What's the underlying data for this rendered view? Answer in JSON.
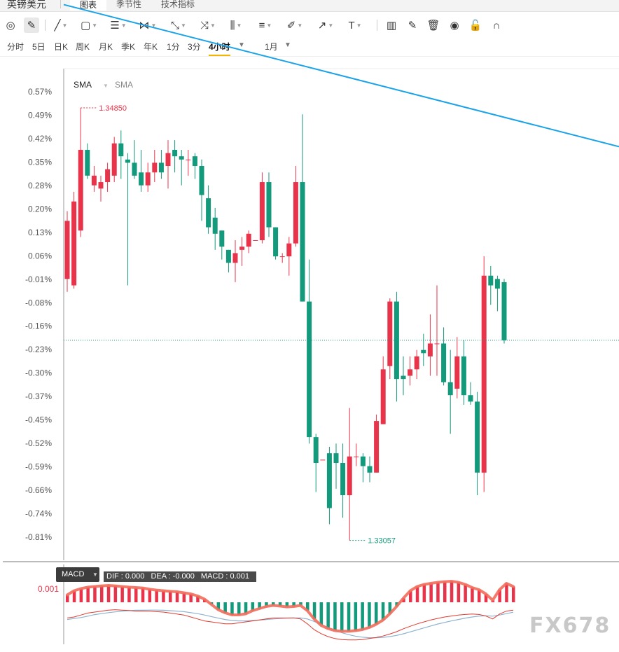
{
  "header": {
    "instrument": "英镑美元",
    "tabs": [
      {
        "label": "图表",
        "active": true
      },
      {
        "label": "季节性",
        "active": false
      },
      {
        "label": "技术指标",
        "active": false
      }
    ]
  },
  "toolbar": {
    "tools": [
      {
        "name": "magnet-icon",
        "glyph": "◎"
      },
      {
        "name": "pencil-icon",
        "glyph": "✎",
        "selected": true
      },
      {
        "name": "line-icon",
        "glyph": "╱"
      },
      {
        "name": "rectangle-icon",
        "glyph": "▢"
      },
      {
        "name": "horizontal-lines-icon",
        "glyph": "☰"
      },
      {
        "name": "pattern-icon",
        "glyph": "⋈"
      },
      {
        "name": "ray-icon",
        "glyph": "⤡"
      },
      {
        "name": "fork-icon",
        "glyph": "⤨"
      },
      {
        "name": "bars-icon",
        "glyph": "⫼"
      },
      {
        "name": "fib-icon",
        "glyph": "≡"
      },
      {
        "name": "brush-icon",
        "glyph": "✐"
      },
      {
        "name": "arrow-icon",
        "glyph": "↗"
      },
      {
        "name": "text-icon",
        "glyph": "T"
      },
      {
        "name": "bar-chart-icon",
        "glyph": "▥"
      },
      {
        "name": "edit-icon",
        "glyph": "✎"
      },
      {
        "name": "trash-icon",
        "glyph": "🗑"
      },
      {
        "name": "eye-icon",
        "glyph": "◉"
      },
      {
        "name": "unlock-icon",
        "glyph": "🔓"
      },
      {
        "name": "magnet-u-icon",
        "glyph": "∩"
      }
    ]
  },
  "periods": {
    "items": [
      "分时",
      "5日",
      "日K",
      "周K",
      "月K",
      "季K",
      "年K",
      "1分",
      "3分",
      "4小时"
    ],
    "active": "4小时",
    "range": "1月"
  },
  "chart_data": {
    "type": "candlestick",
    "timeframe": "4小时",
    "y_axis_format": "percent change",
    "yticks": [
      "0.57%",
      "0.49%",
      "0.42%",
      "0.35%",
      "0.28%",
      "0.20%",
      "0.13%",
      "0.06%",
      "-0.01%",
      "-0.08%",
      "-0.16%",
      "-0.23%",
      "-0.30%",
      "-0.37%",
      "-0.45%",
      "-0.52%",
      "-0.59%",
      "-0.66%",
      "-0.74%",
      "-0.81%"
    ],
    "indicator_labels": [
      "SMA",
      "SMA"
    ],
    "high_label": "1.34850",
    "low_label": "1.33057",
    "current_level_pct": -0.2,
    "trendline": {
      "from_pct": 0.84,
      "to_pct": 0.4,
      "color": "#1aa3e8"
    },
    "colors": {
      "up": "#e8344a",
      "down": "#13997b"
    },
    "candles": [
      {
        "o": -0.01,
        "c": 0.17,
        "h": 0.2,
        "l": -0.05
      },
      {
        "o": -0.03,
        "c": 0.23,
        "h": 0.26,
        "l": -0.04
      },
      {
        "o": 0.14,
        "c": 0.39,
        "h": 0.52,
        "l": 0.12
      },
      {
        "o": 0.39,
        "c": 0.31,
        "h": 0.41,
        "l": 0.3
      },
      {
        "o": 0.28,
        "c": 0.31,
        "h": 0.34,
        "l": 0.26
      },
      {
        "o": 0.27,
        "c": 0.29,
        "h": 0.31,
        "l": 0.23
      },
      {
        "o": 0.29,
        "c": 0.33,
        "h": 0.35,
        "l": 0.26
      },
      {
        "o": 0.31,
        "c": 0.41,
        "h": 0.43,
        "l": 0.29
      },
      {
        "o": 0.41,
        "c": 0.37,
        "h": 0.45,
        "l": 0.3
      },
      {
        "o": 0.36,
        "c": 0.35,
        "h": 0.38,
        "l": -0.03
      },
      {
        "o": 0.35,
        "c": 0.31,
        "h": 0.42,
        "l": 0.3
      },
      {
        "o": 0.32,
        "c": 0.28,
        "h": 0.39,
        "l": 0.26
      },
      {
        "o": 0.28,
        "c": 0.32,
        "h": 0.35,
        "l": 0.26
      },
      {
        "o": 0.32,
        "c": 0.35,
        "h": 0.39,
        "l": 0.29
      },
      {
        "o": 0.35,
        "c": 0.32,
        "h": 0.39,
        "l": 0.3
      },
      {
        "o": 0.34,
        "c": 0.38,
        "h": 0.42,
        "l": 0.27
      },
      {
        "o": 0.39,
        "c": 0.37,
        "h": 0.42,
        "l": 0.32
      },
      {
        "o": 0.37,
        "c": 0.36,
        "h": 0.39,
        "l": 0.28
      },
      {
        "o": 0.36,
        "c": 0.36,
        "h": 0.39,
        "l": 0.31
      },
      {
        "o": 0.37,
        "c": 0.34,
        "h": 0.38,
        "l": 0.3
      },
      {
        "o": 0.34,
        "c": 0.25,
        "h": 0.36,
        "l": 0.17
      },
      {
        "o": 0.24,
        "c": 0.15,
        "h": 0.28,
        "l": 0.13
      },
      {
        "o": 0.18,
        "c": 0.13,
        "h": 0.21,
        "l": 0.08
      },
      {
        "o": 0.14,
        "c": 0.09,
        "h": 0.14,
        "l": 0.05
      },
      {
        "o": 0.08,
        "c": 0.04,
        "h": 0.08,
        "l": 0.01
      },
      {
        "o": 0.04,
        "c": 0.07,
        "h": 0.11,
        "l": -0.02
      },
      {
        "o": 0.08,
        "c": 0.09,
        "h": 0.12,
        "l": 0.03
      },
      {
        "o": 0.09,
        "c": 0.13,
        "h": 0.14,
        "l": 0.07
      },
      {
        "o": 0.11,
        "c": 0.11,
        "h": 0.11,
        "l": 0.11
      },
      {
        "o": 0.11,
        "c": 0.29,
        "h": 0.32,
        "l": 0.1
      },
      {
        "o": 0.29,
        "c": 0.15,
        "h": 0.32,
        "l": 0.12
      },
      {
        "o": 0.15,
        "c": 0.06,
        "h": 0.15,
        "l": 0.05
      },
      {
        "o": 0.06,
        "c": 0.06,
        "h": 0.07,
        "l": 0.04
      },
      {
        "o": 0.06,
        "c": 0.1,
        "h": 0.12,
        "l": 0.0
      },
      {
        "o": 0.1,
        "c": 0.29,
        "h": 0.34,
        "l": 0.09
      },
      {
        "o": 0.29,
        "c": -0.08,
        "h": 0.5,
        "l": -0.08
      },
      {
        "o": -0.08,
        "c": -0.5,
        "h": 0.05,
        "l": -0.52
      },
      {
        "o": -0.5,
        "c": -0.58,
        "h": -0.49,
        "l": -0.67
      },
      {
        "o": -0.57,
        "c": -0.57,
        "h": -0.57,
        "l": -0.57
      },
      {
        "o": -0.55,
        "c": -0.72,
        "h": -0.53,
        "l": -0.77
      },
      {
        "o": -0.55,
        "c": -0.58,
        "h": -0.52,
        "l": -0.66
      },
      {
        "o": -0.58,
        "c": -0.68,
        "h": -0.52,
        "l": -0.75
      },
      {
        "o": -0.68,
        "c": -0.56,
        "h": -0.41,
        "l": -0.82
      },
      {
        "o": -0.56,
        "c": -0.56,
        "h": -0.52,
        "l": -0.59
      },
      {
        "o": -0.56,
        "c": -0.59,
        "h": -0.55,
        "l": -0.64
      },
      {
        "o": -0.59,
        "c": -0.61,
        "h": -0.56,
        "l": -0.64
      },
      {
        "o": -0.61,
        "c": -0.45,
        "h": -0.43,
        "l": -0.61
      },
      {
        "o": -0.46,
        "c": -0.29,
        "h": -0.25,
        "l": -0.46
      },
      {
        "o": -0.28,
        "c": -0.08,
        "h": -0.07,
        "l": -0.32
      },
      {
        "o": -0.08,
        "c": -0.32,
        "h": -0.05,
        "l": -0.39
      },
      {
        "o": -0.31,
        "c": -0.32,
        "h": -0.25,
        "l": -0.37
      },
      {
        "o": -0.31,
        "c": -0.29,
        "h": -0.25,
        "l": -0.34
      },
      {
        "o": -0.29,
        "c": -0.25,
        "h": -0.23,
        "l": -0.32
      },
      {
        "o": -0.23,
        "c": -0.24,
        "h": -0.18,
        "l": -0.28
      },
      {
        "o": -0.25,
        "c": -0.21,
        "h": -0.12,
        "l": -0.31
      },
      {
        "o": -0.21,
        "c": -0.21,
        "h": -0.03,
        "l": -0.31
      },
      {
        "o": -0.21,
        "c": -0.33,
        "h": -0.16,
        "l": -0.34
      },
      {
        "o": -0.33,
        "c": -0.37,
        "h": -0.23,
        "l": -0.49
      },
      {
        "o": -0.35,
        "c": -0.25,
        "h": -0.19,
        "l": -0.38
      },
      {
        "o": -0.25,
        "c": -0.37,
        "h": -0.2,
        "l": -0.4
      },
      {
        "o": -0.37,
        "c": -0.39,
        "h": -0.33,
        "l": -0.4
      },
      {
        "o": -0.39,
        "c": -0.61,
        "h": -0.36,
        "l": -0.68
      },
      {
        "o": -0.61,
        "c": 0.0,
        "h": 0.06,
        "l": -0.67
      },
      {
        "o": 0.0,
        "c": -0.03,
        "h": 0.03,
        "l": -0.09
      },
      {
        "o": -0.01,
        "c": -0.04,
        "h": 0.0,
        "l": -0.11
      },
      {
        "o": -0.02,
        "c": -0.2,
        "h": -0.01,
        "l": -0.21
      }
    ]
  },
  "macd": {
    "name": "MACD",
    "dif_label": "DIF : 0.000",
    "dea_label": "DEA : -0.000",
    "macd_label": "MACD : 0.001",
    "axis_label": "0.001",
    "hist": [
      0.35,
      0.55,
      0.65,
      0.72,
      0.75,
      0.78,
      0.8,
      0.78,
      0.75,
      0.72,
      0.7,
      0.68,
      0.62,
      0.58,
      0.55,
      0.52,
      0.5,
      0.45,
      0.4,
      0.3,
      0.15,
      -0.1,
      -0.35,
      -0.5,
      -0.6,
      -0.6,
      -0.55,
      -0.4,
      -0.3,
      -0.2,
      -0.15,
      -0.18,
      -0.22,
      -0.2,
      -0.15,
      -0.4,
      -0.8,
      -1.1,
      -1.25,
      -1.35,
      -1.38,
      -1.38,
      -1.35,
      -1.3,
      -1.2,
      -1.05,
      -0.85,
      -0.55,
      -0.2,
      0.2,
      0.55,
      0.75,
      0.85,
      0.9,
      0.95,
      0.98,
      1.0,
      0.95,
      0.85,
      0.7,
      0.6,
      0.4,
      0.1,
      0.6,
      0.9,
      0.75
    ],
    "dif": [
      -0.3,
      -0.25,
      -0.15,
      -0.05,
      0.0,
      0.05,
      0.1,
      0.12,
      0.1,
      0.08,
      0.05,
      0.05,
      0.05,
      0.02,
      0.0,
      -0.05,
      -0.1,
      -0.15,
      -0.25,
      -0.35,
      -0.45,
      -0.5,
      -0.55,
      -0.6,
      -0.6,
      -0.55,
      -0.5,
      -0.45,
      -0.4,
      -0.35,
      -0.3,
      -0.3,
      -0.3,
      -0.3,
      -0.35,
      -0.6,
      -0.9,
      -1.1,
      -1.25,
      -1.35,
      -1.4,
      -1.42,
      -1.42,
      -1.4,
      -1.35,
      -1.3,
      -1.22,
      -1.12,
      -1.0,
      -0.85,
      -0.72,
      -0.6,
      -0.5,
      -0.4,
      -0.32,
      -0.25,
      -0.2,
      -0.15,
      -0.12,
      -0.1,
      -0.12,
      -0.2,
      -0.35,
      -0.1,
      0.05,
      0.1
    ],
    "dea": [
      -0.45,
      -0.4,
      -0.35,
      -0.28,
      -0.2,
      -0.15,
      -0.1,
      -0.06,
      -0.02,
      0.0,
      0.02,
      0.02,
      0.03,
      0.03,
      0.02,
      0.0,
      -0.02,
      -0.05,
      -0.1,
      -0.15,
      -0.22,
      -0.3,
      -0.38,
      -0.45,
      -0.5,
      -0.52,
      -0.52,
      -0.5,
      -0.48,
      -0.45,
      -0.42,
      -0.4,
      -0.38,
      -0.37,
      -0.37,
      -0.42,
      -0.55,
      -0.7,
      -0.85,
      -1.0,
      -1.12,
      -1.22,
      -1.3,
      -1.35,
      -1.38,
      -1.38,
      -1.36,
      -1.32,
      -1.26,
      -1.18,
      -1.08,
      -0.98,
      -0.88,
      -0.78,
      -0.68,
      -0.6,
      -0.52,
      -0.45,
      -0.38,
      -0.32,
      -0.28,
      -0.26,
      -0.28,
      -0.22,
      -0.15,
      -0.08
    ],
    "colors": {
      "pos": "#e8344a",
      "neg": "#13997b",
      "signal": "#f26d5b",
      "dif": "#e03a2e",
      "dea": "#8fb2d0"
    }
  },
  "watermark": "FX678"
}
